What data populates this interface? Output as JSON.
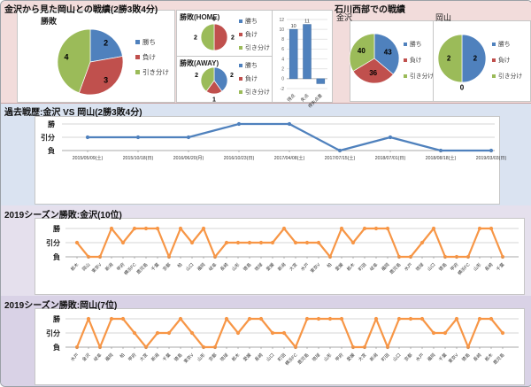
{
  "sections": {
    "summary": {
      "title": "金沢から見た岡山との戦績(2勝3敗4分)"
    },
    "west": {
      "title": "石川西部での戦績"
    },
    "h2h_history": {
      "title": "過去戦歴:金沢 VS 岡山(2勝3敗4分)"
    },
    "season_kanazawa": {
      "title": "2019シーズン勝敗:金沢(10位)"
    },
    "season_okayama": {
      "title": "2019シーズン勝敗:岡山(7位)"
    }
  },
  "palette": {
    "win_blue": "#4f81bd",
    "lose_red": "#c0504d",
    "draw_green": "#9bbb59",
    "season_orange": "#f79646"
  },
  "chart_data": [
    {
      "id": "pie-overall",
      "type": "pie",
      "title": "勝敗",
      "labels": [
        "勝ち",
        "負け",
        "引き分け"
      ],
      "colors": [
        "#4f81bd",
        "#c0504d",
        "#9bbb59"
      ],
      "values": [
        2,
        3,
        4
      ],
      "legend_position": "right"
    },
    {
      "id": "pie-home",
      "type": "pie",
      "title": "勝敗(HOME)",
      "labels": [
        "勝ち",
        "負け",
        "引き分け"
      ],
      "colors": [
        "#4f81bd",
        "#c0504d",
        "#9bbb59"
      ],
      "values": [
        0,
        2,
        2
      ],
      "legend_position": "right"
    },
    {
      "id": "pie-away",
      "type": "pie",
      "title": "勝敗(AWAY)",
      "labels": [
        "勝ち",
        "負け",
        "引き分け"
      ],
      "colors": [
        "#4f81bd",
        "#c0504d",
        "#9bbb59"
      ],
      "values": [
        2,
        1,
        2
      ],
      "legend_position": "right"
    },
    {
      "id": "bar-goals",
      "type": "bar",
      "categories": [
        "得点",
        "失点",
        "得失点差"
      ],
      "values": [
        10,
        11,
        -1
      ],
      "color": "#4f81bd",
      "ylim": [
        -2,
        12
      ],
      "ytick_step": 2
    },
    {
      "id": "pie-west-kanazawa",
      "type": "pie",
      "title": "金沢",
      "labels": [
        "勝ち",
        "負け",
        "引き分け"
      ],
      "colors": [
        "#4f81bd",
        "#c0504d",
        "#9bbb59"
      ],
      "values": [
        43,
        36,
        40
      ],
      "legend_position": "right"
    },
    {
      "id": "pie-west-okayama",
      "type": "pie",
      "title": "岡山",
      "labels": [
        "勝ち",
        "負け",
        "引き分け"
      ],
      "colors": [
        "#4f81bd",
        "#c0504d",
        "#9bbb59"
      ],
      "values": [
        2,
        0,
        2
      ],
      "legend_position": "right"
    },
    {
      "id": "line-h2h",
      "type": "line",
      "color": "#4f81bd",
      "yticks": [
        "勝",
        "引分",
        "負"
      ],
      "categories": [
        "2015/05/09(土)",
        "2015/10/18(日)",
        "2016/06/20(月)",
        "2016/10/23(日)",
        "2017/04/08(土)",
        "2017/07/15(土)",
        "2018/07/01(日)",
        "2018/08/18(土)",
        "2019/03/03(日)"
      ],
      "results": [
        "引分",
        "引分",
        "引分",
        "勝",
        "勝",
        "負",
        "引分",
        "負",
        "負"
      ]
    },
    {
      "id": "line-season-kanazawa",
      "type": "line",
      "color": "#f79646",
      "yticks": [
        "勝",
        "引分",
        "負"
      ],
      "categories": [
        "栃木",
        "岡山",
        "東京V",
        "新潟",
        "甲府",
        "横浜FC",
        "鹿児島",
        "千葉",
        "京都",
        "柏",
        "山口",
        "福岡",
        "岐阜",
        "長崎",
        "山形",
        "徳島",
        "琉球",
        "愛媛",
        "新潟",
        "大宮",
        "水戸",
        "東京V",
        "柏",
        "愛媛",
        "栃木",
        "町田",
        "岐阜",
        "福岡",
        "鹿児島",
        "水戸",
        "琉球",
        "山口",
        "徳島",
        "甲府",
        "横浜FC",
        "山形",
        "長崎",
        "千葉"
      ],
      "results": [
        "引分",
        "負",
        "負",
        "勝",
        "引分",
        "勝",
        "勝",
        "勝",
        "負",
        "勝",
        "引分",
        "勝",
        "負",
        "引分",
        "引分",
        "引分",
        "引分",
        "引分",
        "勝",
        "引分",
        "引分",
        "引分",
        "負",
        "勝",
        "引分",
        "勝",
        "勝",
        "勝",
        "負",
        "負",
        "引分",
        "勝",
        "負",
        "負",
        "負",
        "勝",
        "勝",
        "負"
      ]
    },
    {
      "id": "line-season-okayama",
      "type": "line",
      "color": "#f79646",
      "yticks": [
        "勝",
        "引分",
        "負"
      ],
      "categories": [
        "水戸",
        "金沢",
        "岐阜",
        "福岡",
        "柏",
        "甲府",
        "大宮",
        "新潟",
        "千葉",
        "徳島",
        "東京V",
        "山形",
        "京都",
        "琉球",
        "栃木",
        "愛媛",
        "長崎",
        "山口",
        "町田",
        "横浜FC",
        "鹿児島",
        "琉球",
        "山形",
        "甲府",
        "愛媛",
        "大宮",
        "新潟",
        "町田",
        "山口",
        "京都",
        "水戸",
        "福岡",
        "千葉",
        "東京V",
        "徳島",
        "長崎",
        "栃木",
        "鹿児島"
      ],
      "results": [
        "負",
        "勝",
        "負",
        "勝",
        "勝",
        "引分",
        "負",
        "引分",
        "引分",
        "勝",
        "引分",
        "負",
        "負",
        "勝",
        "引分",
        "勝",
        "勝",
        "引分",
        "引分",
        "負",
        "勝",
        "勝",
        "勝",
        "勝",
        "負",
        "負",
        "勝",
        "負",
        "勝",
        "勝",
        "勝",
        "引分",
        "引分",
        "勝",
        "負",
        "勝",
        "勝",
        "引分"
      ]
    }
  ]
}
